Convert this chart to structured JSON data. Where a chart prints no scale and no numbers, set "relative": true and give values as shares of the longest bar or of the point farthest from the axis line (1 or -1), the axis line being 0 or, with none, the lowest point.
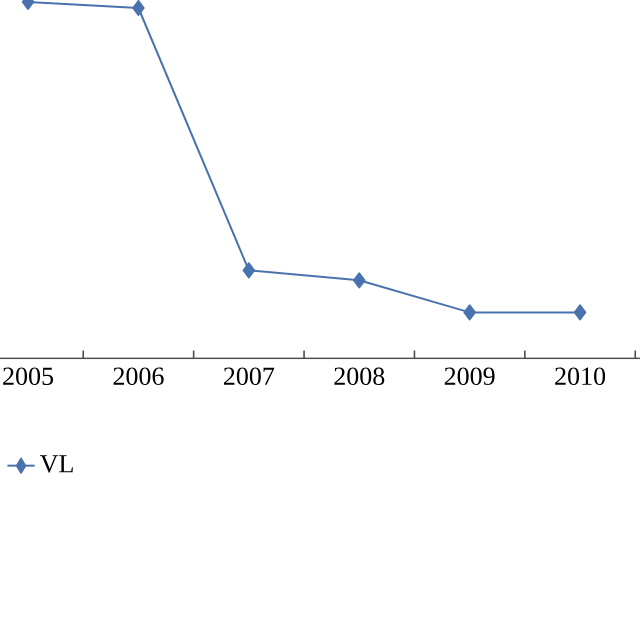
{
  "chart_data": {
    "type": "line",
    "categories": [
      "2005",
      "2006",
      "2007",
      "2008",
      "2009",
      "2010"
    ],
    "relative": true,
    "series": [
      {
        "name": "VL",
        "color": "#4a72ad",
        "values": [
          1,
          0.983,
          0.247,
          0.219,
          0.129,
          0.129
        ]
      }
    ],
    "marker": "diamond",
    "line_style": "solid",
    "legend": "bottom left"
  }
}
